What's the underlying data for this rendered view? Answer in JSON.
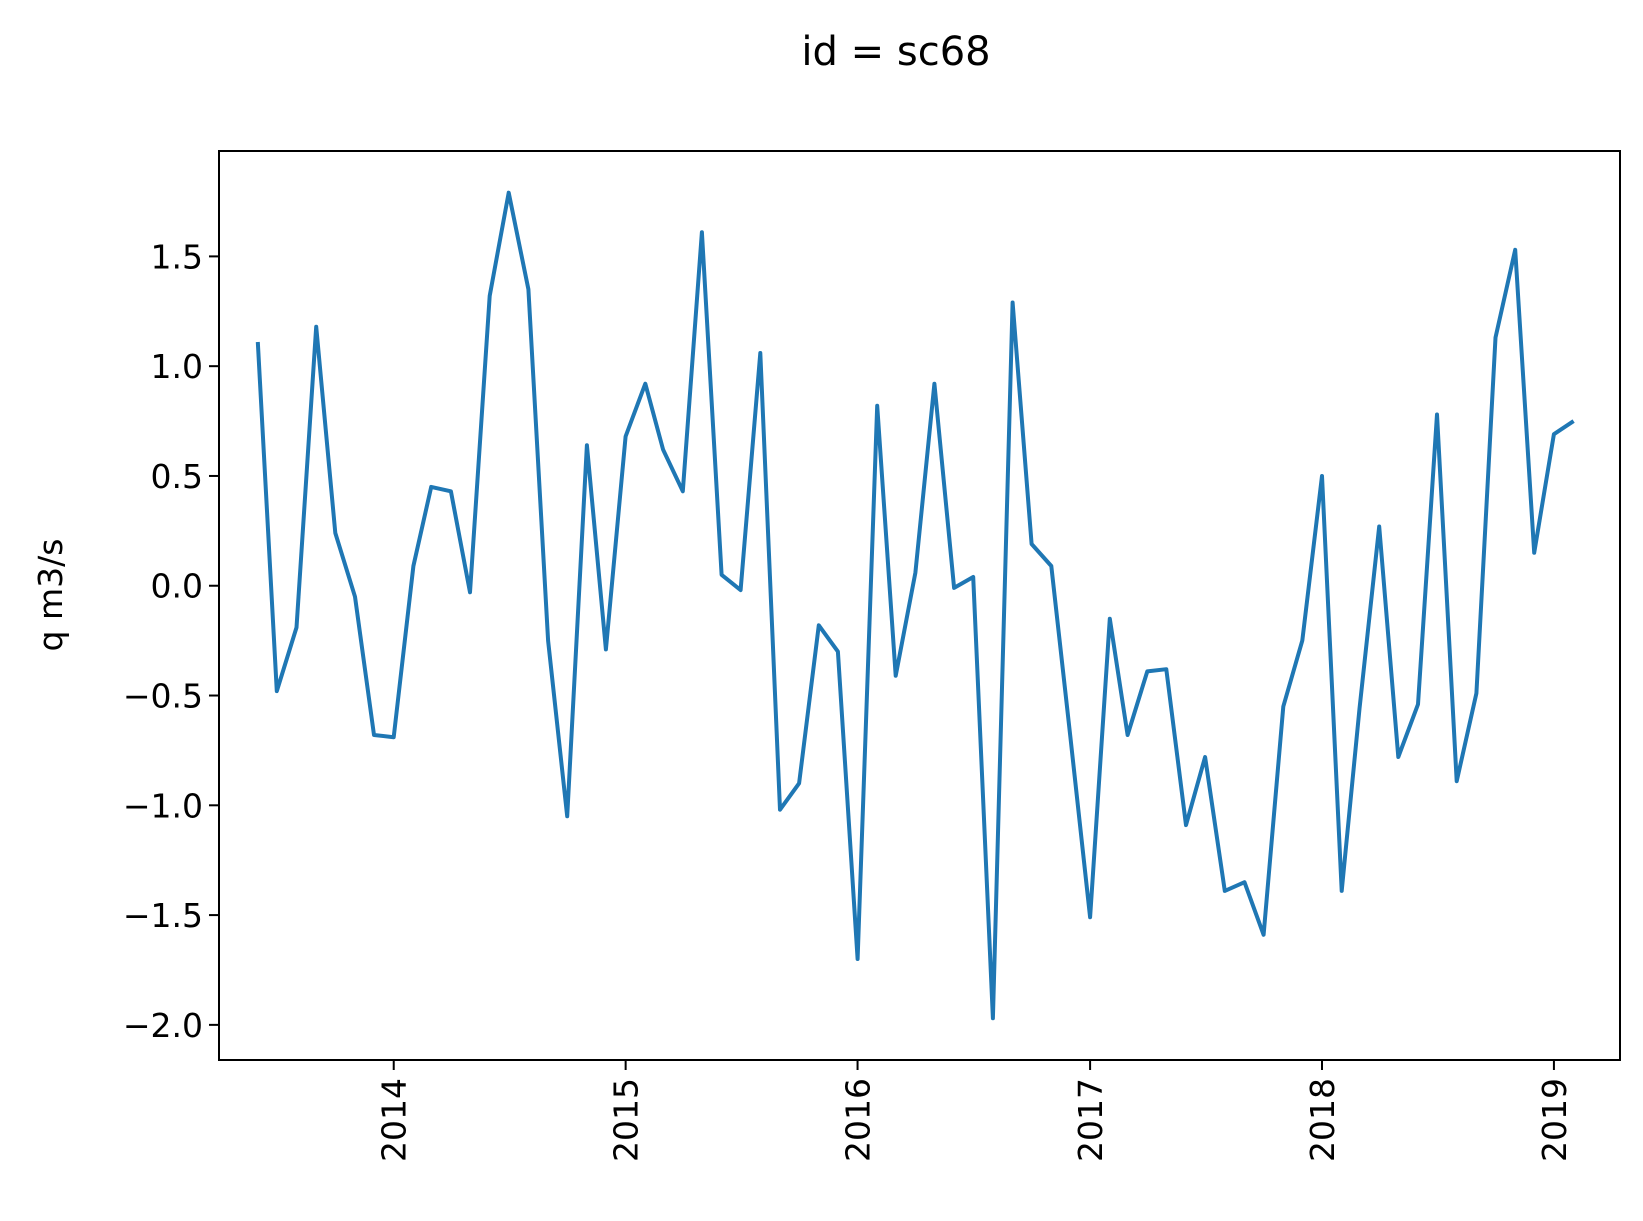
{
  "chart_data": {
    "type": "line",
    "title": "id = sc68",
    "xlabel": "",
    "ylabel": "q m3/s",
    "xlim": [
      "2013-04-01",
      "2019-04-15"
    ],
    "ylim": [
      -2.16,
      1.98
    ],
    "grid": false,
    "legend": "none",
    "x_ticks": [
      "2014",
      "2015",
      "2016",
      "2017",
      "2018",
      "2019"
    ],
    "y_ticks": [
      -2.0,
      -1.5,
      -1.0,
      -0.5,
      0.0,
      0.5,
      1.0,
      1.5
    ],
    "series": [
      {
        "color": "#1f77b4",
        "x": [
          "2013-06-01",
          "2013-07-01",
          "2013-08-01",
          "2013-09-01",
          "2013-10-01",
          "2013-11-01",
          "2013-12-01",
          "2014-01-01",
          "2014-02-01",
          "2014-03-01",
          "2014-04-01",
          "2014-05-01",
          "2014-06-01",
          "2014-07-01",
          "2014-08-01",
          "2014-09-01",
          "2014-10-01",
          "2014-11-01",
          "2014-12-01",
          "2015-01-01",
          "2015-02-01",
          "2015-03-01",
          "2015-04-01",
          "2015-05-01",
          "2015-06-01",
          "2015-07-01",
          "2015-08-01",
          "2015-09-01",
          "2015-10-01",
          "2015-11-01",
          "2015-12-01",
          "2016-01-01",
          "2016-02-01",
          "2016-03-01",
          "2016-04-01",
          "2016-05-01",
          "2016-06-01",
          "2016-07-01",
          "2016-08-01",
          "2016-09-01",
          "2016-10-01",
          "2016-11-01",
          "2016-12-01",
          "2017-01-01",
          "2017-02-01",
          "2017-03-01",
          "2017-04-01",
          "2017-05-01",
          "2017-06-01",
          "2017-07-01",
          "2017-08-01",
          "2017-09-01",
          "2017-10-01",
          "2017-11-01",
          "2017-12-01",
          "2018-01-01",
          "2018-02-01",
          "2018-03-01",
          "2018-04-01",
          "2018-05-01",
          "2018-06-01",
          "2018-07-01",
          "2018-08-01",
          "2018-09-01",
          "2018-10-01",
          "2018-11-01",
          "2018-12-01",
          "2019-01-01",
          "2019-02-01"
        ],
        "y": [
          1.11,
          -0.48,
          -0.19,
          1.18,
          0.24,
          -0.05,
          -0.68,
          -0.69,
          0.09,
          0.45,
          0.43,
          -0.03,
          1.32,
          1.79,
          1.35,
          -0.25,
          -1.05,
          0.64,
          -0.29,
          0.68,
          0.92,
          0.62,
          0.43,
          1.61,
          0.05,
          -0.02,
          1.06,
          -1.02,
          -0.9,
          -0.18,
          -0.3,
          -1.7,
          0.82,
          -0.41,
          0.06,
          0.92,
          -0.01,
          0.04,
          -1.97,
          1.29,
          0.19,
          0.09,
          -0.69,
          -1.51,
          -0.15,
          -0.68,
          -0.39,
          -0.38,
          -1.09,
          -0.78,
          -1.39,
          -1.35,
          -1.59,
          -0.55,
          -0.25,
          0.5,
          -1.39,
          -0.56,
          0.27,
          -0.78,
          -0.54,
          0.78,
          -0.89,
          -0.49,
          1.13,
          1.53,
          0.15,
          0.69,
          0.75
        ]
      }
    ]
  }
}
